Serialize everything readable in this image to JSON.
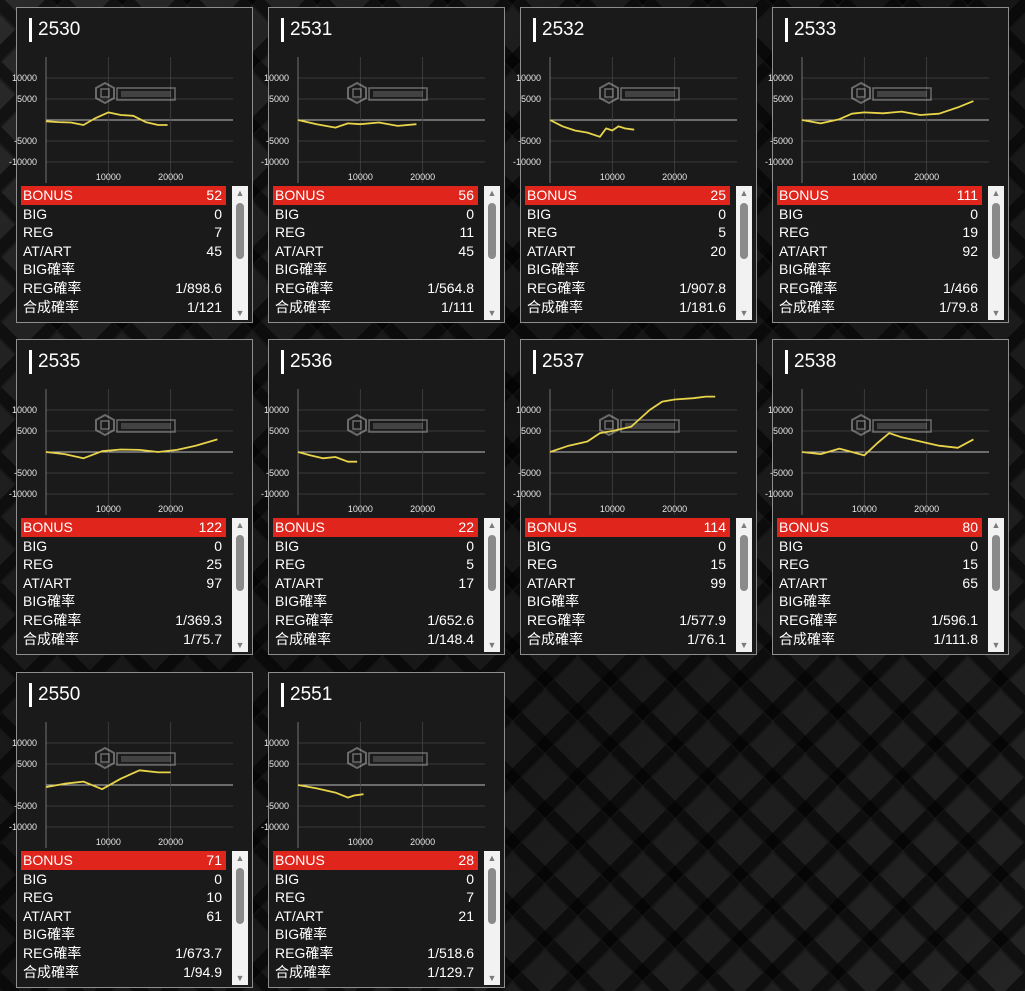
{
  "colors": {
    "bonus_bg": "#e0261c",
    "line": "#e8d44a",
    "card_border": "#8e8e8e"
  },
  "icons": {
    "scroll_up": "▲",
    "scroll_down": "▼"
  },
  "labels": [
    "BONUS",
    "BIG",
    "REG",
    "AT/ART",
    "BIG確率",
    "REG確率",
    "合成確率"
  ],
  "axis": {
    "y_ticks": [
      10000,
      5000,
      0,
      -5000,
      -10000
    ],
    "y_tick_labels": [
      "10000",
      "5000",
      "",
      "-5000",
      "-10000"
    ],
    "x_ticks": [
      10000,
      20000
    ],
    "x_tick_labels": [
      "10000",
      "20000"
    ],
    "xlim": [
      0,
      30000
    ],
    "ylim": [
      -15000,
      15000
    ]
  },
  "machines": [
    {
      "id": "2530",
      "stats": [
        "52",
        "0",
        "7",
        "45",
        "",
        "1/898.6",
        "1/121"
      ],
      "chart_data": {
        "type": "line",
        "x": [
          0,
          2000,
          4000,
          6000,
          8000,
          10000,
          12000,
          14000,
          16000,
          18000,
          19500
        ],
        "y": [
          -300,
          -500,
          -600,
          -1200,
          500,
          1800,
          1200,
          1000,
          -500,
          -1200,
          -1200
        ]
      }
    },
    {
      "id": "2531",
      "stats": [
        "56",
        "0",
        "11",
        "45",
        "",
        "1/564.8",
        "1/111"
      ],
      "chart_data": {
        "type": "line",
        "x": [
          0,
          3000,
          6000,
          8000,
          10000,
          13000,
          16000,
          19000
        ],
        "y": [
          0,
          -1000,
          -1800,
          -800,
          -1000,
          -600,
          -1400,
          -1000
        ]
      }
    },
    {
      "id": "2532",
      "stats": [
        "25",
        "0",
        "5",
        "20",
        "",
        "1/907.8",
        "1/181.6"
      ],
      "chart_data": {
        "type": "line",
        "x": [
          0,
          2000,
          4000,
          6000,
          8000,
          9000,
          10000,
          11000,
          12000,
          13500
        ],
        "y": [
          0,
          -1500,
          -2500,
          -3000,
          -4000,
          -2000,
          -2500,
          -1500,
          -2000,
          -2300
        ]
      }
    },
    {
      "id": "2533",
      "stats": [
        "111",
        "0",
        "19",
        "92",
        "",
        "1/466",
        "1/79.8"
      ],
      "chart_data": {
        "type": "line",
        "x": [
          0,
          3000,
          6000,
          8000,
          10000,
          13000,
          16000,
          19000,
          22000,
          25000,
          27500
        ],
        "y": [
          0,
          -800,
          200,
          1500,
          1800,
          1600,
          2000,
          1200,
          1500,
          3000,
          4500
        ]
      }
    },
    {
      "id": "2535",
      "stats": [
        "122",
        "0",
        "25",
        "97",
        "",
        "1/369.3",
        "1/75.7"
      ],
      "chart_data": {
        "type": "line",
        "x": [
          0,
          3000,
          6000,
          9000,
          12000,
          15000,
          18000,
          21000,
          24000,
          27500
        ],
        "y": [
          0,
          -500,
          -1500,
          200,
          600,
          500,
          0,
          500,
          1500,
          3000
        ]
      }
    },
    {
      "id": "2536",
      "stats": [
        "22",
        "0",
        "5",
        "17",
        "",
        "1/652.6",
        "1/148.4"
      ],
      "chart_data": {
        "type": "line",
        "x": [
          0,
          2000,
          4000,
          6000,
          8000,
          9500
        ],
        "y": [
          0,
          -800,
          -1500,
          -1200,
          -2300,
          -2300
        ]
      }
    },
    {
      "id": "2537",
      "stats": [
        "114",
        "0",
        "15",
        "99",
        "",
        "1/577.9",
        "1/76.1"
      ],
      "chart_data": {
        "type": "line",
        "x": [
          0,
          3000,
          6000,
          8000,
          10000,
          13000,
          16000,
          18000,
          20000,
          23000,
          25000,
          26500
        ],
        "y": [
          0,
          1500,
          2500,
          4500,
          5000,
          6000,
          10000,
          12000,
          12500,
          12800,
          13200,
          13200
        ]
      }
    },
    {
      "id": "2538",
      "stats": [
        "80",
        "0",
        "15",
        "65",
        "",
        "1/596.1",
        "1/111.8"
      ],
      "chart_data": {
        "type": "line",
        "x": [
          0,
          3000,
          6000,
          8000,
          10000,
          12000,
          14000,
          16000,
          19000,
          22000,
          25000,
          27500
        ],
        "y": [
          0,
          -500,
          800,
          0,
          -800,
          2000,
          4500,
          3500,
          2500,
          1500,
          1000,
          3000
        ]
      }
    },
    {
      "id": "2550",
      "stats": [
        "71",
        "0",
        "10",
        "61",
        "",
        "1/673.7",
        "1/94.9"
      ],
      "chart_data": {
        "type": "line",
        "x": [
          0,
          3000,
          6000,
          9000,
          12000,
          15000,
          18000,
          20000
        ],
        "y": [
          -500,
          300,
          800,
          -1000,
          1500,
          3500,
          3000,
          3000
        ]
      }
    },
    {
      "id": "2551",
      "stats": [
        "28",
        "0",
        "7",
        "21",
        "",
        "1/518.6",
        "1/129.7"
      ],
      "chart_data": {
        "type": "line",
        "x": [
          0,
          3000,
          6000,
          8000,
          9000,
          10500
        ],
        "y": [
          0,
          -800,
          -1800,
          -3000,
          -2500,
          -2200
        ]
      }
    }
  ]
}
